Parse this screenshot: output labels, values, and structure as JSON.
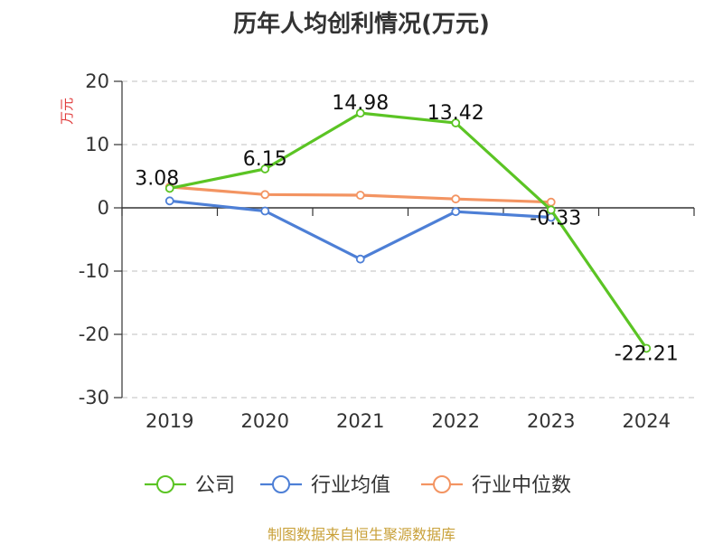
{
  "chart_data": {
    "type": "line",
    "title": "历年人均创利情况(万元)",
    "ylabel": "万元",
    "xlabel": "",
    "categories": [
      "2019",
      "2020",
      "2021",
      "2022",
      "2023",
      "2024"
    ],
    "ylim": [
      -30,
      20
    ],
    "yticks": [
      20,
      10,
      0,
      -10,
      -20,
      -30
    ],
    "grid": true,
    "legend_position": "bottom",
    "series": [
      {
        "name": "公司",
        "color": "#5bc424",
        "values": [
          3.08,
          6.15,
          14.98,
          13.42,
          -0.33,
          -22.21
        ]
      },
      {
        "name": "行业均值",
        "color": "#4d7fd6",
        "values": [
          1.1,
          -0.5,
          -8.1,
          -0.6,
          -1.5,
          null
        ]
      },
      {
        "name": "行业中位数",
        "color": "#f39462",
        "values": [
          3.3,
          2.1,
          2.0,
          1.4,
          0.9,
          null
        ]
      }
    ],
    "data_labels": [
      {
        "series": 0,
        "index": 0,
        "text": "3.08"
      },
      {
        "series": 0,
        "index": 1,
        "text": "6.15"
      },
      {
        "series": 0,
        "index": 2,
        "text": "14.98"
      },
      {
        "series": 0,
        "index": 3,
        "text": "13.42"
      },
      {
        "series": 0,
        "index": 4,
        "text": "-0.33"
      },
      {
        "series": 0,
        "index": 5,
        "text": "-22.21"
      }
    ]
  },
  "source_text": "制图数据来自恒生聚源数据库"
}
